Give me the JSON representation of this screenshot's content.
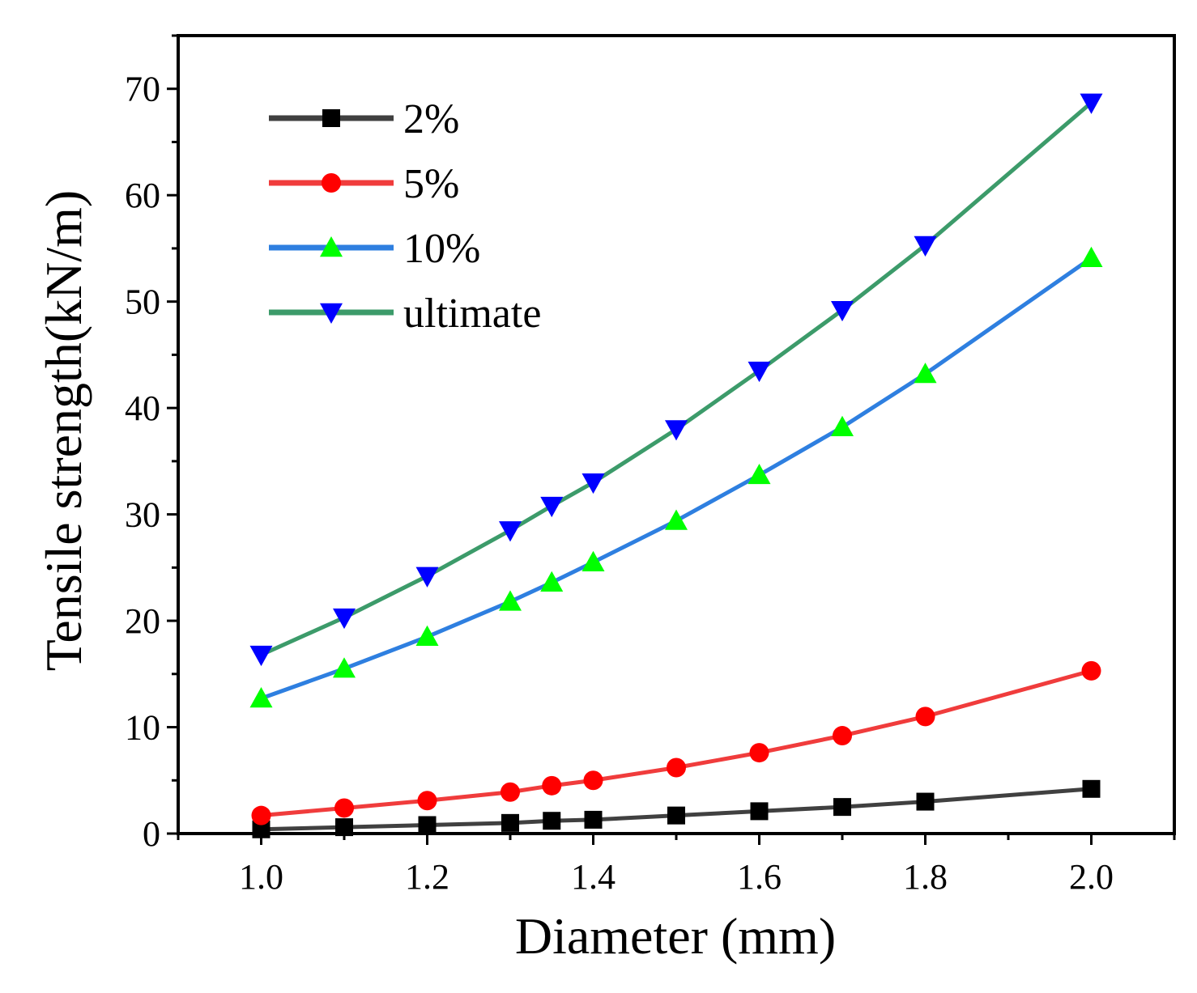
{
  "chart_data": {
    "type": "line",
    "title": "",
    "xlabel": "Diameter (mm)",
    "ylabel": "Tensile strength(kN/m)",
    "xlim": [
      0.9,
      2.1
    ],
    "ylim": [
      0,
      75
    ],
    "x_ticks": [
      1.0,
      1.2,
      1.4,
      1.6,
      1.8,
      2.0
    ],
    "x_tick_labels": [
      "1.0",
      "1.2",
      "1.4",
      "1.6",
      "1.8",
      "2.0"
    ],
    "y_ticks": [
      0,
      10,
      20,
      30,
      40,
      50,
      60,
      70
    ],
    "y_tick_labels": [
      "0",
      "10",
      "20",
      "30",
      "40",
      "50",
      "60",
      "70"
    ],
    "grid": false,
    "legend_position": "top-left",
    "x": [
      1.0,
      1.1,
      1.2,
      1.3,
      1.35,
      1.4,
      1.5,
      1.6,
      1.7,
      1.8,
      2.0
    ],
    "series": [
      {
        "name": "2%",
        "color": "#404040",
        "marker": "square",
        "marker_color": "#000000",
        "values": [
          0.4,
          0.6,
          0.8,
          1.0,
          1.2,
          1.3,
          1.7,
          2.1,
          2.5,
          3.0,
          4.2
        ]
      },
      {
        "name": "5%",
        "color": "#f03c3c",
        "marker": "circle",
        "marker_color": "#ff0000",
        "values": [
          1.7,
          2.4,
          3.1,
          3.9,
          4.5,
          5.0,
          6.2,
          7.6,
          9.2,
          11.0,
          15.3
        ]
      },
      {
        "name": "10%",
        "color": "#2e7fe0",
        "marker": "triangle-up",
        "marker_color": "#00ff00",
        "values": [
          12.7,
          15.5,
          18.5,
          21.8,
          23.6,
          25.5,
          29.4,
          33.7,
          38.2,
          43.2,
          54.1
        ]
      },
      {
        "name": "ultimate",
        "color": "#3c9b6a",
        "marker": "triangle-down",
        "marker_color": "#0000ff",
        "values": [
          16.8,
          20.3,
          24.2,
          28.5,
          30.8,
          33.0,
          38.0,
          43.5,
          49.2,
          55.3,
          68.7
        ]
      }
    ]
  }
}
